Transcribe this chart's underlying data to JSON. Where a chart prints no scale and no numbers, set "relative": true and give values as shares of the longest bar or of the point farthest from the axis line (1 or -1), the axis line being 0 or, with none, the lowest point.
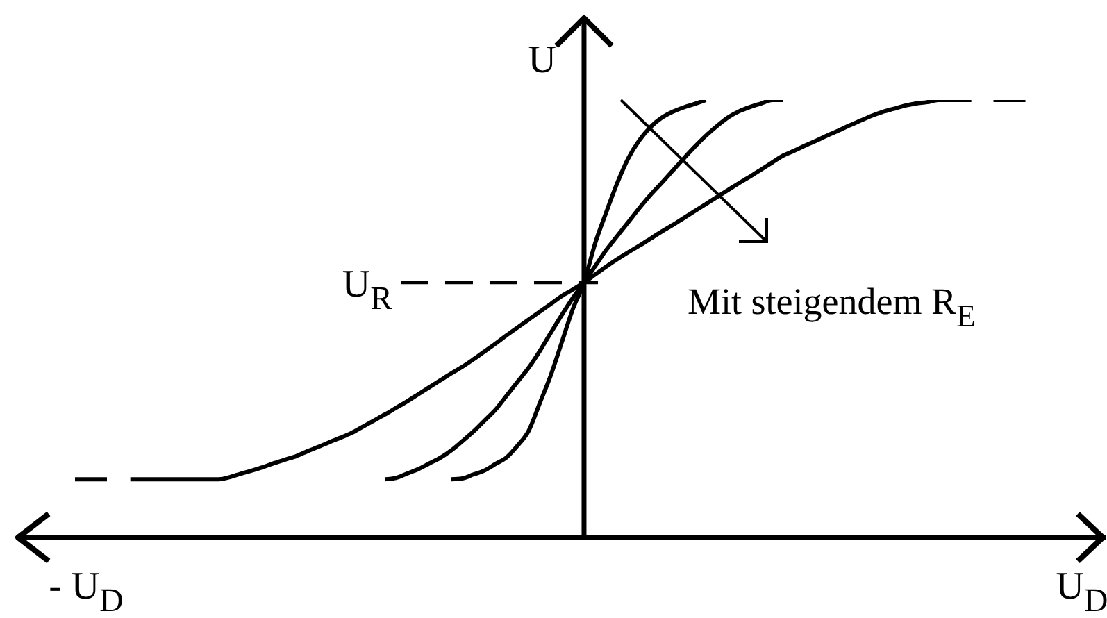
{
  "chart_data": {
    "type": "line",
    "relative": true,
    "ylabel": "U",
    "categories": [
      null,
      "- U$_{D}$",
      null,
      null,
      null,
      null,
      null,
      null,
      null,
      null,
      null,
      null,
      null,
      null,
      null,
      null,
      null,
      null,
      null,
      null,
      null,
      null,
      null,
      null,
      null,
      null,
      null,
      null,
      null,
      null,
      null,
      null,
      null,
      null,
      null,
      null,
      null,
      null,
      null,
      null,
      null,
      null,
      null,
      null,
      null,
      null,
      null,
      null,
      null,
      null,
      null,
      null,
      null,
      null,
      null,
      null,
      null,
      null,
      null,
      null,
      null,
      null,
      null,
      null,
      null,
      null,
      null,
      null,
      null,
      null,
      null,
      null,
      null,
      null,
      null,
      null,
      null,
      null,
      null,
      null,
      null,
      null,
      null,
      null,
      null,
      null,
      null,
      null,
      null,
      null,
      null,
      "U$_{D}$"
    ],
    "annotations": [
      "Mit steigendem R$_{E}$"
    ],
    "ref_lines": [
      {
        "axis": "y",
        "value": 0.583,
        "label": "U$_{R}$",
        "line_style": "dashed"
      }
    ],
    "series": [
      {
        "color": "#000000",
        "values": [
          null,
          null,
          null,
          null,
          null,
          null,
          null,
          null,
          null,
          null,
          null,
          null,
          null,
          null,
          null,
          null,
          null,
          null,
          null,
          null,
          null,
          null,
          null,
          null,
          null,
          null,
          null,
          null,
          null,
          null,
          null,
          null,
          null,
          null,
          0.133,
          0.135,
          0.144,
          0.153,
          0.168,
          0.183,
          0.21,
          0.244,
          0.307,
          0.371,
          0.447,
          0.523,
          0.583,
          0.672,
          0.743,
          0.81,
          0.867,
          0.908,
          0.938,
          0.959,
          0.973,
          0.983,
          0.991,
          1,
          null,
          null,
          null,
          null,
          null,
          null,
          null,
          null,
          null,
          null,
          null,
          null,
          null,
          null,
          null,
          null,
          null,
          null,
          null,
          null,
          null,
          null,
          null,
          null,
          null,
          null,
          null,
          null,
          null,
          null,
          null,
          null,
          null,
          null
        ]
      },
      {
        "color": "#000000",
        "values": [
          null,
          null,
          null,
          null,
          null,
          null,
          null,
          null,
          null,
          null,
          null,
          null,
          null,
          null,
          null,
          null,
          null,
          null,
          null,
          null,
          null,
          null,
          null,
          null,
          null,
          null,
          null,
          null,
          0.133,
          0.136,
          0.146,
          0.156,
          0.169,
          0.182,
          0.199,
          0.22,
          0.242,
          0.267,
          0.292,
          0.324,
          0.356,
          0.388,
          0.426,
          0.468,
          0.509,
          0.548,
          0.583,
          0.62,
          0.657,
          0.689,
          0.721,
          0.753,
          0.783,
          0.81,
          0.838,
          0.866,
          0.893,
          0.918,
          0.94,
          0.96,
          0.974,
          0.984,
          0.992,
          1,
          1,
          null,
          null,
          null,
          null,
          null,
          null,
          null,
          null,
          null,
          null,
          null,
          null,
          null,
          null,
          null,
          null,
          null,
          null,
          null,
          null,
          null,
          null,
          null,
          null,
          null,
          null,
          null
        ]
      },
      {
        "color": "#000000",
        "values": [
          null,
          null,
          null,
          null,
          null,
          0.133,
          0.133,
          0.133,
          0.133,
          0.133,
          0.133,
          0.133,
          0.133,
          0.133,
          0.138,
          0.146,
          0.153,
          0.161,
          0.17,
          0.178,
          0.186,
          0.197,
          0.207,
          0.218,
          0.228,
          0.239,
          0.253,
          0.267,
          0.281,
          0.296,
          0.311,
          0.327,
          0.343,
          0.359,
          0.375,
          0.39,
          0.407,
          0.425,
          0.443,
          0.462,
          0.48,
          0.498,
          0.516,
          0.534,
          0.552,
          0.567,
          0.583,
          0.601,
          0.619,
          0.636,
          0.652,
          0.667,
          0.683,
          0.699,
          0.714,
          0.73,
          0.746,
          0.762,
          0.778,
          0.794,
          0.81,
          0.825,
          0.841,
          0.857,
          0.873,
          0.884,
          0.896,
          0.907,
          0.919,
          0.93,
          0.942,
          0.953,
          0.964,
          0.973,
          0.98,
          0.987,
          0.992,
          0.995,
          1,
          1,
          1,
          1,
          null,
          null,
          null,
          null,
          null,
          null,
          null,
          null,
          null,
          null
        ]
      },
      {
        "color": "#000000",
        "line_style": "dashed",
        "values": [
          0.133,
          0.133,
          0.133,
          0.133,
          null,
          null,
          null,
          null,
          null,
          null,
          null,
          null,
          null,
          null,
          null,
          null,
          null,
          null,
          null,
          null,
          null,
          null,
          null,
          null,
          null,
          null,
          null,
          null,
          null,
          null,
          null,
          null,
          null,
          null,
          null,
          null,
          null,
          null,
          null,
          null,
          null,
          null,
          null,
          null,
          null,
          null,
          null,
          null,
          null,
          null,
          null,
          null,
          null,
          null,
          null,
          null,
          null,
          null,
          null,
          null,
          null,
          null,
          null,
          null,
          null,
          null,
          null,
          null,
          null,
          null,
          null,
          null,
          null,
          null,
          null,
          null,
          null,
          null,
          null,
          null,
          null,
          null,
          null,
          1,
          1,
          1,
          1,
          null,
          null,
          null,
          null,
          null
        ]
      }
    ]
  }
}
